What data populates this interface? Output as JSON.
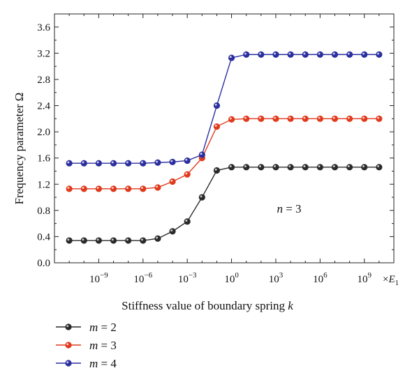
{
  "chart_data": {
    "type": "line",
    "x_scale": "log10",
    "x_tick_labels": [
      {
        "base": "10",
        "exp": "−9",
        "value": 1e-09
      },
      {
        "base": "10",
        "exp": "−6",
        "value": 1e-06
      },
      {
        "base": "10",
        "exp": "−3",
        "value": 0.001
      },
      {
        "base": "10",
        "exp": "0",
        "value": 1
      },
      {
        "base": "10",
        "exp": "3",
        "value": 1000.0
      },
      {
        "base": "10",
        "exp": "6",
        "value": 1000000.0
      },
      {
        "base": "10",
        "exp": "9",
        "value": 1000000000.0
      }
    ],
    "x_unit_prefix": "×",
    "x_unit_symbol": "E",
    "x_unit_subscript": "1",
    "xlabel": "Stiffness value of boundary spring k",
    "xlabel_main": "Stiffness value of boundary spring ",
    "xlabel_var": "k",
    "ylabel": "Frequency parameter Ω",
    "ylim": [
      0,
      3.8
    ],
    "y_ticks": [
      "0.0",
      "0.4",
      "0.8",
      "1.2",
      "1.6",
      "2.0",
      "2.4",
      "2.8",
      "3.2",
      "3.6"
    ],
    "x": [
      1e-11,
      1e-10,
      1e-09,
      1e-08,
      1e-07,
      1e-06,
      1e-05,
      0.0001,
      0.001,
      0.01,
      0.1,
      1,
      10.0,
      100.0,
      1000.0,
      10000.0,
      100000.0,
      1000000.0,
      10000000.0,
      100000000.0,
      1000000000.0,
      10000000000.0
    ],
    "xlim": [
      1e-12,
      100000000000.0
    ],
    "series": [
      {
        "name": "m = 2",
        "color": "#2a2a2a",
        "values": [
          0.34,
          0.34,
          0.34,
          0.34,
          0.34,
          0.34,
          0.37,
          0.48,
          0.63,
          1.0,
          1.41,
          1.46,
          1.46,
          1.46,
          1.46,
          1.46,
          1.46,
          1.46,
          1.46,
          1.46,
          1.46,
          1.46
        ]
      },
      {
        "name": "m = 3",
        "color": "#e0391c",
        "values": [
          1.13,
          1.13,
          1.13,
          1.13,
          1.13,
          1.13,
          1.15,
          1.24,
          1.35,
          1.6,
          2.08,
          2.19,
          2.2,
          2.2,
          2.2,
          2.2,
          2.2,
          2.2,
          2.2,
          2.2,
          2.2,
          2.2
        ]
      },
      {
        "name": "m = 4",
        "color": "#2b2f9e",
        "values": [
          1.52,
          1.52,
          1.52,
          1.52,
          1.52,
          1.52,
          1.53,
          1.54,
          1.56,
          1.65,
          2.4,
          3.13,
          3.18,
          3.18,
          3.18,
          3.18,
          3.18,
          3.18,
          3.18,
          3.18,
          3.18,
          3.18
        ]
      }
    ],
    "annotation": {
      "var": "n",
      "rest": " = 3"
    },
    "legend": [
      {
        "var": "m",
        "rest": " = 2"
      },
      {
        "var": "m",
        "rest": " = 3"
      },
      {
        "var": "m",
        "rest": " = 4"
      }
    ],
    "legend_placement": "below-left",
    "grid": false
  }
}
